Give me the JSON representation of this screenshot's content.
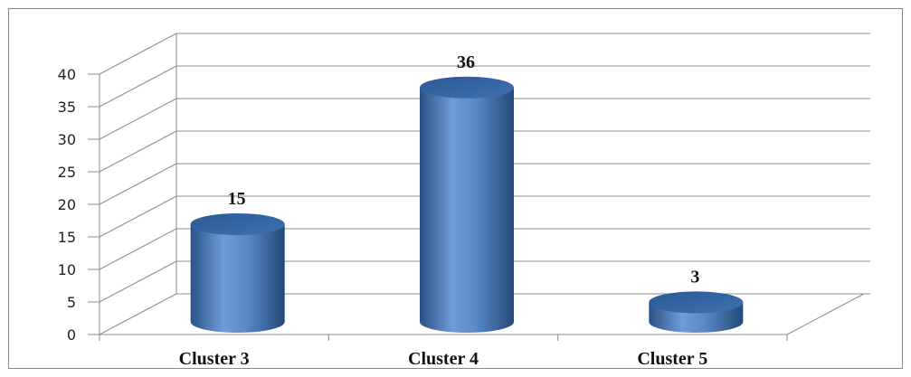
{
  "chart_data": {
    "type": "bar",
    "style": "3d-cylinder",
    "title": "",
    "xlabel": "",
    "ylabel": "",
    "categories": [
      "Cluster 3",
      "Cluster 4",
      "Cluster 5"
    ],
    "values": [
      15,
      36,
      3
    ],
    "data_labels": [
      "15",
      "36",
      "3"
    ],
    "ylim": [
      0,
      40
    ],
    "yticks": [
      "0",
      "5",
      "10",
      "15",
      "20",
      "25",
      "30",
      "35",
      "40"
    ],
    "grid": true,
    "legend": "none",
    "bar_color": "#4f81bd"
  }
}
